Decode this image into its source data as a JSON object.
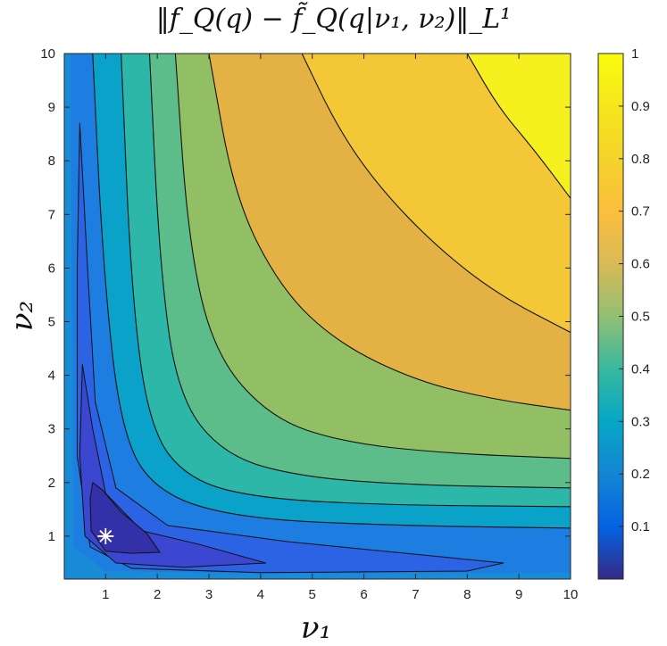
{
  "chart_data": {
    "type": "contour",
    "title": "‖f_Q(q) − f̃_Q(q|ν₁, ν₂)‖_L¹",
    "xlabel": "ν₁",
    "ylabel": "ν₂",
    "xlim": [
      0.2,
      10
    ],
    "ylim": [
      0.2,
      10
    ],
    "xticks": [
      1,
      2,
      3,
      4,
      5,
      6,
      7,
      8,
      9,
      10
    ],
    "yticks": [
      1,
      2,
      3,
      4,
      5,
      6,
      7,
      8,
      9,
      10
    ],
    "colorbar": {
      "range": [
        0,
        1
      ],
      "ticks": [
        0.1,
        0.2,
        0.3,
        0.4,
        0.5,
        0.6,
        0.7,
        0.8,
        0.9,
        1
      ],
      "colormap": "parula"
    },
    "contour_levels": [
      0.1,
      0.2,
      0.3,
      0.4,
      0.5,
      0.6,
      0.7,
      0.8,
      0.9
    ],
    "marker": {
      "symbol": "asterisk",
      "x": 1,
      "y": 1,
      "color": "#ffffff"
    },
    "grid": false
  }
}
